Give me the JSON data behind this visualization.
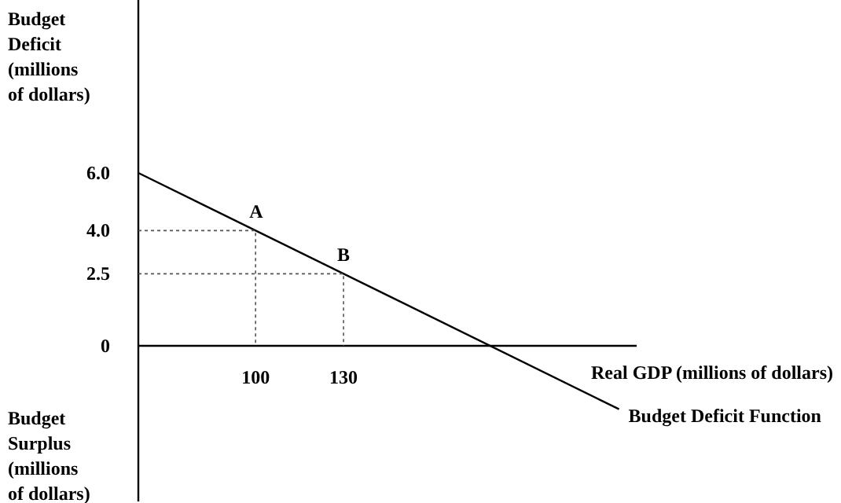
{
  "chart_data": {
    "type": "line",
    "ylabel": "Budget Deficit (millions of dollars)",
    "xlabel": "Real GDP (millions of dollars)",
    "series": [
      {
        "name": "Budget Deficit Function",
        "color": "#000000",
        "x": [
          60,
          224
        ],
        "values": [
          6,
          -2.2
        ]
      },
      {
        "color": "#555555",
        "line_style": "dotted",
        "x": [
          60,
          100,
          100
        ],
        "values": [
          4,
          4,
          0
        ]
      },
      {
        "color": "#555555",
        "line_style": "dotted",
        "x": [
          60,
          130,
          130
        ],
        "values": [
          2.5,
          2.5,
          0
        ]
      }
    ],
    "xlim": [
      60,
      230
    ],
    "ylim": [
      -5.4,
      12
    ],
    "xticks": [
      100,
      130
    ],
    "yticks": [
      0,
      {
        "value": 2.5,
        "label": "2.5"
      },
      {
        "value": 4,
        "label": "4.0"
      },
      {
        "value": 6,
        "label": "6.0"
      }
    ],
    "annotations": [
      {
        "text": "A",
        "x": 100,
        "y": 4
      },
      {
        "text": "B",
        "x": 130,
        "y": 2.5
      },
      "Budget Surplus (millions of dollars)"
    ]
  }
}
